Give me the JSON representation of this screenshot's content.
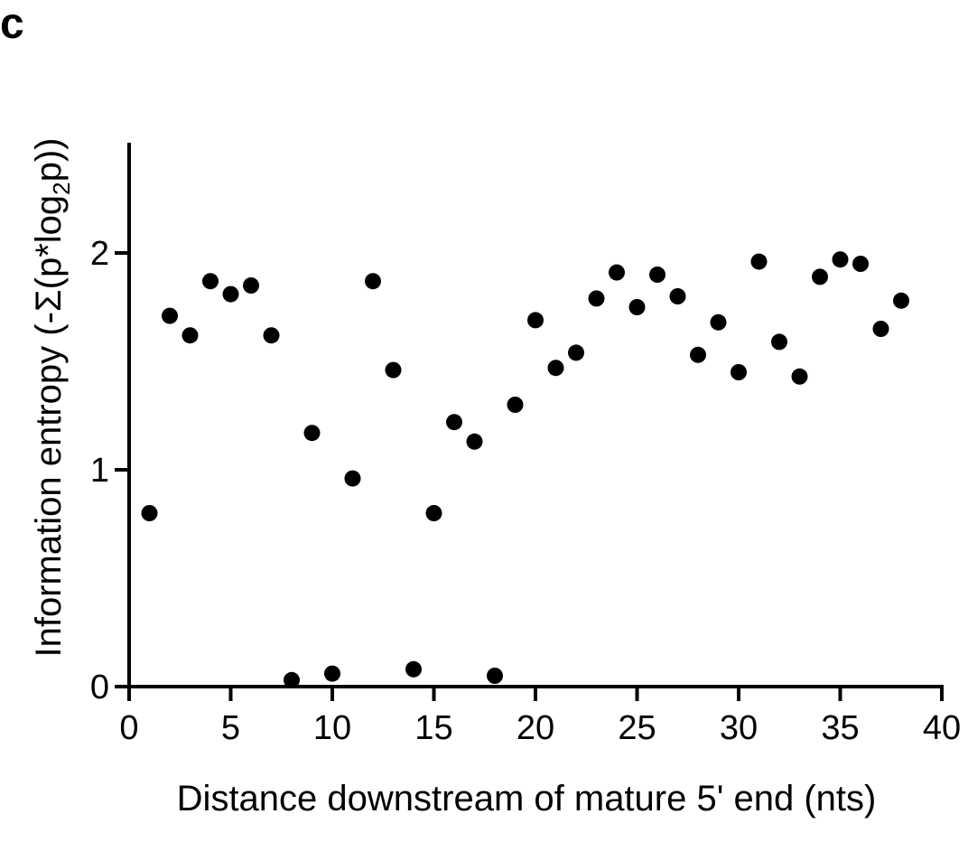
{
  "panel_label": "c",
  "chart_data": {
    "type": "scatter",
    "title": "",
    "xlabel": "Distance downstream of mature 5' end (nts)",
    "ylabel": {
      "prefix": "Information entropy (-Σ(p*log",
      "subscript": "2",
      "suffix": "p))"
    },
    "xlim": [
      0,
      40
    ],
    "ylim": [
      0,
      2.5
    ],
    "xticks": [
      "0",
      "5",
      "10",
      "15",
      "20",
      "25",
      "30",
      "35",
      "40"
    ],
    "yticks": [
      "0",
      "1",
      "2"
    ],
    "grid": false,
    "legend": "none",
    "marker_color": "#000000",
    "points": [
      {
        "x": 1,
        "y": 0.8
      },
      {
        "x": 2,
        "y": 1.71
      },
      {
        "x": 3,
        "y": 1.62
      },
      {
        "x": 4,
        "y": 1.87
      },
      {
        "x": 5,
        "y": 1.81
      },
      {
        "x": 6,
        "y": 1.85
      },
      {
        "x": 7,
        "y": 1.62
      },
      {
        "x": 8,
        "y": 0.03
      },
      {
        "x": 9,
        "y": 1.17
      },
      {
        "x": 10,
        "y": 0.06
      },
      {
        "x": 11,
        "y": 0.96
      },
      {
        "x": 12,
        "y": 1.87
      },
      {
        "x": 13,
        "y": 1.46
      },
      {
        "x": 14,
        "y": 0.08
      },
      {
        "x": 15,
        "y": 0.8
      },
      {
        "x": 16,
        "y": 1.22
      },
      {
        "x": 17,
        "y": 1.13
      },
      {
        "x": 18,
        "y": 0.05
      },
      {
        "x": 19,
        "y": 1.3
      },
      {
        "x": 20,
        "y": 1.69
      },
      {
        "x": 21,
        "y": 1.47
      },
      {
        "x": 22,
        "y": 1.54
      },
      {
        "x": 23,
        "y": 1.79
      },
      {
        "x": 24,
        "y": 1.91
      },
      {
        "x": 25,
        "y": 1.75
      },
      {
        "x": 26,
        "y": 1.9
      },
      {
        "x": 27,
        "y": 1.8
      },
      {
        "x": 28,
        "y": 1.53
      },
      {
        "x": 29,
        "y": 1.68
      },
      {
        "x": 30,
        "y": 1.45
      },
      {
        "x": 31,
        "y": 1.96
      },
      {
        "x": 32,
        "y": 1.59
      },
      {
        "x": 33,
        "y": 1.43
      },
      {
        "x": 34,
        "y": 1.89
      },
      {
        "x": 35,
        "y": 1.97
      },
      {
        "x": 36,
        "y": 1.95
      },
      {
        "x": 37,
        "y": 1.65
      },
      {
        "x": 38,
        "y": 1.78
      }
    ]
  }
}
